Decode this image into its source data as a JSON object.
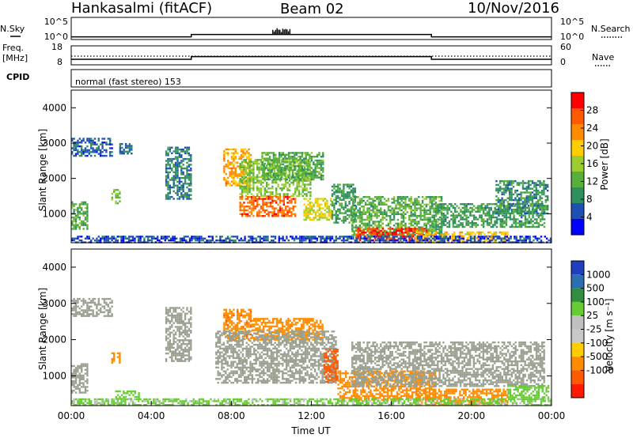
{
  "header": {
    "station": "Hankasalmi (fitACF)",
    "beam": "Beam 02",
    "date": "10/Nov/2016"
  },
  "strip_labels": {
    "nsky": "N.Sky",
    "nsearch": "N.Search",
    "freq_line1": "Freq.",
    "freq_line2": "[MHz]",
    "nave": "Nave",
    "cpid": "CPID",
    "cpid_value": "normal (fast stereo) 153",
    "nsky_top": "10^5",
    "nsky_bottom": "10^0",
    "nsearch_top": "10^5",
    "nsearch_bottom": "10^0",
    "freq_top": "18",
    "freq_bottom": "8",
    "nave_top": "60",
    "nave_bottom": "0"
  },
  "colors": {
    "power_scale": [
      "#0000ff",
      "#1f4fb4",
      "#2f8f5f",
      "#58b03a",
      "#9ccc2e",
      "#ffcc00",
      "#ff8c00",
      "#ff5a00",
      "#ff0000"
    ],
    "velocity_scale": [
      "#1f3fbf",
      "#2a6fb0",
      "#2f8f3f",
      "#66cc33",
      "#c0c0c0",
      "#c8c8c8",
      "#ffcc00",
      "#ff8c00",
      "#ff5a00",
      "#ff1a00"
    ],
    "ground_scatter": "#9aa090"
  },
  "chart_data": [
    {
      "type": "line",
      "name": "N.Sky / N.Search",
      "x": [
        "00:00",
        "06:00",
        "06:00",
        "18:00",
        "18:00",
        "24:00"
      ],
      "y_scale": "log",
      "ylim": [
        "10^0",
        "10^5"
      ],
      "values": [
        3,
        3,
        12,
        12,
        3,
        3
      ],
      "peaks": [
        {
          "x": "10:30",
          "value": 120
        }
      ]
    },
    {
      "type": "line",
      "name": "Freq. / Nave",
      "x": [
        "00:00",
        "06:00",
        "06:00",
        "18:00",
        "18:00",
        "24:00"
      ],
      "freq_ylim": [
        8,
        18
      ],
      "nave_ylim": [
        0,
        60
      ],
      "freq_values": [
        10.5,
        10.5,
        12.2,
        12.2,
        10.5,
        10.5
      ],
      "nave_values": [
        27,
        27,
        27,
        27,
        27,
        27
      ]
    },
    {
      "type": "heatmap",
      "name": "Power",
      "xlabel": "",
      "ylabel": "Slant Range [km]",
      "colorbar_label": "Power [dB]",
      "xlim": [
        "00:00",
        "24:00"
      ],
      "ylim": [
        180,
        4500
      ],
      "y_ticks": [
        1000,
        2000,
        3000,
        4000
      ],
      "colorbar_ticks": [
        4,
        8,
        12,
        16,
        20,
        24,
        28
      ],
      "colorbar_range": [
        0,
        32
      ],
      "regions": [
        {
          "t": [
            0.0,
            2.0
          ],
          "r": [
            2650,
            3150
          ],
          "level": 6
        },
        {
          "t": [
            2.4,
            3.0
          ],
          "r": [
            2700,
            3000
          ],
          "level": 7
        },
        {
          "t": [
            4.7,
            6.0
          ],
          "r": [
            1400,
            2900
          ],
          "level": 8
        },
        {
          "t": [
            0.0,
            0.8
          ],
          "r": [
            550,
            1350
          ],
          "level": 12
        },
        {
          "t": [
            2.0,
            2.4
          ],
          "r": [
            1300,
            1700
          ],
          "level": 14
        },
        {
          "t": [
            7.6,
            9.0
          ],
          "r": [
            1800,
            2850
          ],
          "level": 22
        },
        {
          "t": [
            8.4,
            12.0
          ],
          "r": [
            1500,
            2550
          ],
          "level": 14
        },
        {
          "t": [
            8.4,
            11.2
          ],
          "r": [
            950,
            1500
          ],
          "level": 26
        },
        {
          "t": [
            9.5,
            12.6
          ],
          "r": [
            1950,
            2750
          ],
          "level": 12
        },
        {
          "t": [
            11.6,
            13.0
          ],
          "r": [
            850,
            1450
          ],
          "level": 18
        },
        {
          "t": [
            13.0,
            14.2
          ],
          "r": [
            750,
            1850
          ],
          "level": 10
        },
        {
          "t": [
            14.0,
            18.5
          ],
          "r": [
            400,
            1500
          ],
          "level": 12
        },
        {
          "t": [
            14.2,
            17.8
          ],
          "r": [
            250,
            600
          ],
          "level": 29
        },
        {
          "t": [
            17.2,
            21.8
          ],
          "r": [
            200,
            500
          ],
          "level": 20
        },
        {
          "t": [
            18.0,
            23.6
          ],
          "r": [
            650,
            1300
          ],
          "level": 10
        },
        {
          "t": [
            21.2,
            23.8
          ],
          "r": [
            1000,
            1950
          ],
          "level": 9
        },
        {
          "t": [
            0.0,
            24.0
          ],
          "r": [
            180,
            380
          ],
          "level": 5
        }
      ]
    },
    {
      "type": "heatmap",
      "name": "Velocity",
      "xlabel": "Time UT",
      "ylabel": "Slant Range [km]",
      "colorbar_label": "Velocity [m s⁻¹]",
      "xlim": [
        "00:00",
        "24:00"
      ],
      "ylim": [
        180,
        4500
      ],
      "x_ticks": [
        "00:00",
        "04:00",
        "08:00",
        "12:00",
        "16:00",
        "20:00",
        "00:00"
      ],
      "y_ticks": [
        1000,
        2000,
        3000,
        4000
      ],
      "colorbar_ticks": [
        1000,
        500,
        100,
        25,
        -25,
        -100,
        -500,
        -1000
      ],
      "regions": [
        {
          "t": [
            0.0,
            2.0
          ],
          "r": [
            2650,
            3150
          ],
          "v": 0,
          "gs": true
        },
        {
          "t": [
            4.7,
            6.0
          ],
          "r": [
            1400,
            2900
          ],
          "v": 0,
          "gs": true
        },
        {
          "t": [
            0.0,
            0.8
          ],
          "r": [
            550,
            1350
          ],
          "v": 0,
          "gs": true
        },
        {
          "t": [
            2.0,
            2.4
          ],
          "r": [
            1350,
            1650
          ],
          "v": -150
        },
        {
          "t": [
            7.6,
            9.0
          ],
          "r": [
            2000,
            2850
          ],
          "v": -400
        },
        {
          "t": [
            9.0,
            12.6
          ],
          "r": [
            2000,
            2600
          ],
          "v": -350
        },
        {
          "t": [
            7.2,
            13.2
          ],
          "r": [
            800,
            2250
          ],
          "v": 0,
          "gs": true
        },
        {
          "t": [
            12.6,
            13.3
          ],
          "r": [
            850,
            1750
          ],
          "v": -700
        },
        {
          "t": [
            13.3,
            18.2
          ],
          "r": [
            350,
            1150
          ],
          "v": -200
        },
        {
          "t": [
            17.2,
            21.8
          ],
          "r": [
            200,
            650
          ],
          "v": -150
        },
        {
          "t": [
            14.0,
            23.6
          ],
          "r": [
            700,
            1950
          ],
          "v": 0,
          "gs": true
        },
        {
          "t": [
            21.8,
            23.8
          ],
          "r": [
            350,
            750
          ],
          "v": 60
        },
        {
          "t": [
            2.2,
            3.4
          ],
          "r": [
            350,
            600
          ],
          "v": 60
        },
        {
          "t": [
            0.0,
            24.0
          ],
          "r": [
            180,
            380
          ],
          "v": 30
        }
      ]
    }
  ]
}
